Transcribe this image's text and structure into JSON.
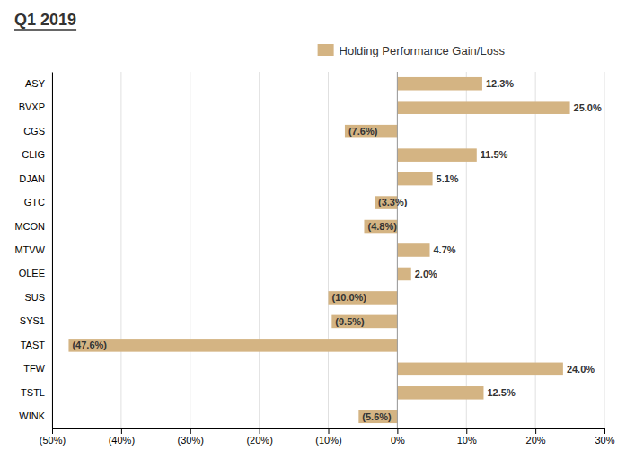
{
  "chart_data": {
    "type": "bar",
    "orientation": "horizontal",
    "title": "Q1 2019",
    "categories": [
      "ASY",
      "BVXP",
      "CGS",
      "CLIG",
      "DJAN",
      "GTC",
      "MCON",
      "MTVW",
      "OLEE",
      "SUS",
      "SYS1",
      "TAST",
      "TFW",
      "TSTL",
      "WINK"
    ],
    "series": [
      {
        "name": "Holding Performance Gain/Loss",
        "color": "#D4B483",
        "values": [
          12.3,
          25.0,
          -7.6,
          11.5,
          5.1,
          -3.3,
          -4.8,
          4.7,
          2.0,
          -10.0,
          -9.5,
          -47.6,
          24.0,
          12.5,
          -5.6
        ],
        "value_labels": [
          "12.3%",
          "25.0%",
          "(7.6%)",
          "11.5%",
          "5.1%",
          "(3.3%)",
          "(4.8%)",
          "4.7%",
          "2.0%",
          "(10.0%)",
          "(9.5%)",
          "(47.6%)",
          "24.0%",
          "12.5%",
          "(5.6%)"
        ]
      }
    ],
    "xlim": [
      -50,
      30
    ],
    "xticks": [
      {
        "value": -50,
        "label": "(50%)"
      },
      {
        "value": -40,
        "label": "(40%)"
      },
      {
        "value": -30,
        "label": "(30%)"
      },
      {
        "value": -20,
        "label": "(20%)"
      },
      {
        "value": -10,
        "label": "(10%)"
      },
      {
        "value": 0,
        "label": "0%"
      },
      {
        "value": 10,
        "label": "10%"
      },
      {
        "value": 20,
        "label": "20%"
      },
      {
        "value": 30,
        "label": "30%"
      }
    ],
    "grid": true,
    "data_labels": true,
    "legend": "top"
  }
}
